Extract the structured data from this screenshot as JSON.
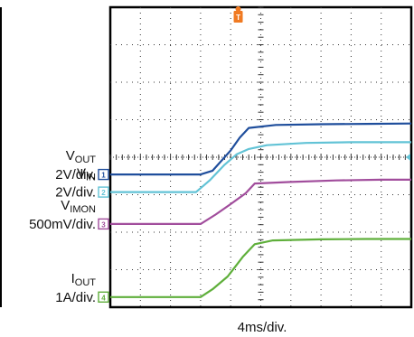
{
  "chart_data": {
    "type": "line",
    "xlabel": "4ms/div.",
    "grid": true,
    "x_divisions": 10,
    "y_divisions": 8,
    "trigger_marker": "T",
    "series": [
      {
        "name_main": "V",
        "name_sub": "OUT",
        "scale": "2V/div.",
        "channel": "1",
        "color": "#1f4e9c",
        "x": [
          0,
          3.0,
          3.4,
          4.0,
          4.3,
          4.6,
          5.5,
          7.0,
          8.5,
          10
        ],
        "y": [
          -0.46,
          -0.46,
          -0.36,
          0.18,
          0.52,
          0.78,
          0.86,
          0.88,
          0.89,
          0.9
        ]
      },
      {
        "name_main": "V",
        "name_sub": "IN",
        "scale": "2V/div.",
        "channel": "2",
        "color": "#62c3d6",
        "x": [
          0,
          2.85,
          3.3,
          3.8,
          4.2,
          4.6,
          5.2,
          6.5,
          8.0,
          10
        ],
        "y": [
          -0.93,
          -0.93,
          -0.62,
          -0.2,
          0.08,
          0.22,
          0.32,
          0.38,
          0.4,
          0.4
        ]
      },
      {
        "name_main": "V",
        "name_sub": "IMON",
        "scale": "500mV/div.",
        "channel": "3",
        "color": "#a14d9c",
        "x": [
          0,
          3.0,
          3.5,
          4.0,
          4.5,
          4.8,
          6.0,
          7.5,
          9.0,
          10
        ],
        "y": [
          -1.78,
          -1.78,
          -1.53,
          -1.25,
          -0.96,
          -0.7,
          -0.66,
          -0.62,
          -0.6,
          -0.6
        ]
      },
      {
        "name_main": "I",
        "name_sub": "OUT",
        "scale": "1A/div.",
        "channel": "4",
        "color": "#5faf3b",
        "x": [
          0,
          3.0,
          3.4,
          3.9,
          4.4,
          4.8,
          5.4,
          7.0,
          8.5,
          10
        ],
        "y": [
          -3.73,
          -3.73,
          -3.52,
          -3.18,
          -2.66,
          -2.32,
          -2.22,
          -2.19,
          -2.18,
          -2.18
        ]
      }
    ]
  }
}
